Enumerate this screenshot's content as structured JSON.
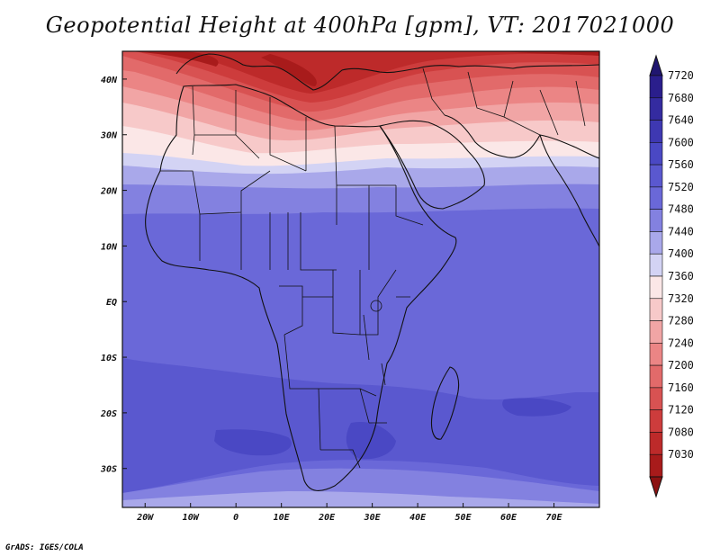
{
  "title": "Geopotential Height at 400hPa [gpm], VT: 2017021000",
  "credit": "GrADS: IGES/COLA",
  "map": {
    "lon_range": [
      -25,
      80
    ],
    "lat_range": [
      -37,
      45
    ],
    "lon_ticks": [
      {
        "value": -20,
        "label": "20W"
      },
      {
        "value": -10,
        "label": "10W"
      },
      {
        "value": 0,
        "label": "0"
      },
      {
        "value": 10,
        "label": "10E"
      },
      {
        "value": 20,
        "label": "20E"
      },
      {
        "value": 30,
        "label": "30E"
      },
      {
        "value": 40,
        "label": "40E"
      },
      {
        "value": 50,
        "label": "50E"
      },
      {
        "value": 60,
        "label": "60E"
      },
      {
        "value": 70,
        "label": "70E"
      }
    ],
    "lat_ticks": [
      {
        "value": 40,
        "label": "40N"
      },
      {
        "value": 30,
        "label": "30N"
      },
      {
        "value": 20,
        "label": "20N"
      },
      {
        "value": 10,
        "label": "10N"
      },
      {
        "value": 0,
        "label": "EQ"
      },
      {
        "value": -10,
        "label": "10S"
      },
      {
        "value": -20,
        "label": "20S"
      },
      {
        "value": -30,
        "label": "30S"
      }
    ]
  },
  "colorbar": {
    "levels": [
      {
        "label": "7720",
        "color": "#2a1e8c"
      },
      {
        "label": "7680",
        "color": "#342ba0"
      },
      {
        "label": "7640",
        "color": "#3e38b2"
      },
      {
        "label": "7600",
        "color": "#4a48c4"
      },
      {
        "label": "7560",
        "color": "#5a58cf"
      },
      {
        "label": "7520",
        "color": "#6a68d8"
      },
      {
        "label": "7480",
        "color": "#8381e0"
      },
      {
        "label": "7440",
        "color": "#a9a8ea"
      },
      {
        "label": "7400",
        "color": "#d3d3f4"
      },
      {
        "label": "7360",
        "color": "#fbe7e7"
      },
      {
        "label": "7320",
        "color": "#f7c9c9"
      },
      {
        "label": "7280",
        "color": "#f1a5a5"
      },
      {
        "label": "7240",
        "color": "#eb8585"
      },
      {
        "label": "7200",
        "color": "#e26a6a"
      },
      {
        "label": "7160",
        "color": "#d85252"
      },
      {
        "label": "7120",
        "color": "#cd3c3c"
      },
      {
        "label": "7080",
        "color": "#bd2a2a"
      },
      {
        "label": "7030",
        "color": "#a81b1b"
      }
    ],
    "top_arrow_color": "#201670",
    "bottom_arrow_color": "#8c1212"
  }
}
